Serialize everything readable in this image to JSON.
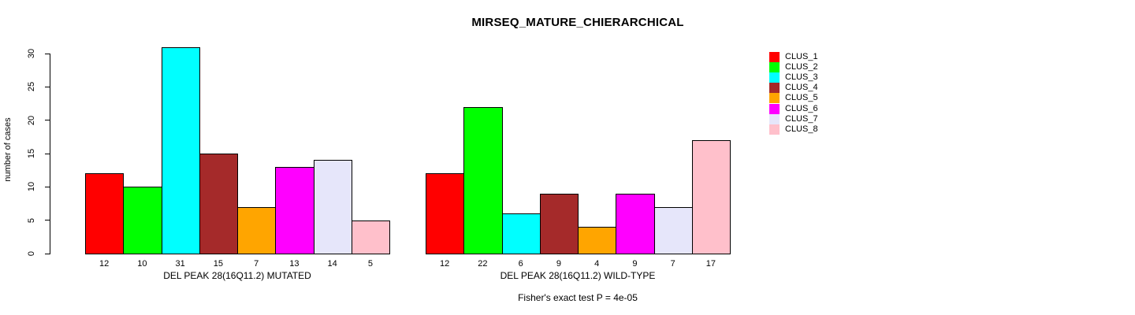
{
  "chart_data": {
    "type": "bar",
    "title": "MIRSEQ_MATURE_CHIERARCHICAL",
    "ylabel": "number of cases",
    "xlabel": "",
    "ylim": [
      0,
      31
    ],
    "yticks": [
      0,
      5,
      10,
      15,
      20,
      25,
      30
    ],
    "grid": false,
    "legend_position": "right-inside",
    "categories": [
      "CLUS_1",
      "CLUS_2",
      "CLUS_3",
      "CLUS_4",
      "CLUS_5",
      "CLUS_6",
      "CLUS_7",
      "CLUS_8"
    ],
    "colors": [
      "#FF0000",
      "#00FF00",
      "#00FFFF",
      "#A52A2A",
      "#FFA500",
      "#FF00FF",
      "#E6E6FA",
      "#FFC0CB"
    ],
    "groups": [
      {
        "label": "DEL PEAK 28(16Q11.2) MUTATED",
        "values": [
          12,
          10,
          31,
          15,
          7,
          13,
          14,
          5
        ]
      },
      {
        "label": "DEL PEAK 28(16Q11.2) WILD-TYPE",
        "values": [
          12,
          22,
          6,
          9,
          4,
          9,
          7,
          17
        ]
      }
    ],
    "bar_value_labels_shown": true,
    "annotation": "Fisher's exact test P = 4e-05"
  }
}
